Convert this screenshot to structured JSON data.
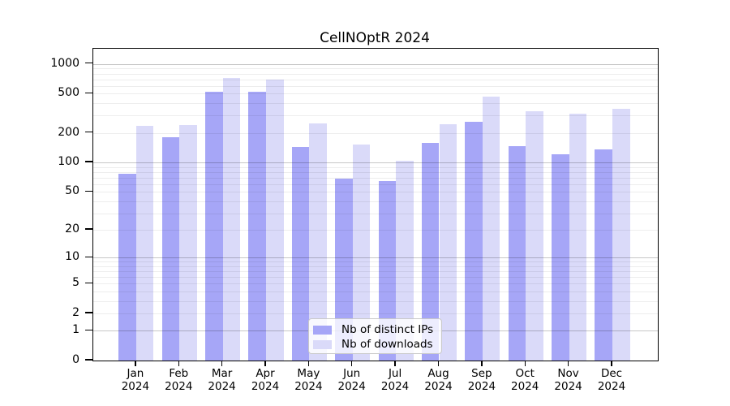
{
  "chart_data": {
    "type": "bar",
    "title": "CellNOptR 2024",
    "categories": [
      "Jan",
      "Feb",
      "Mar",
      "Apr",
      "May",
      "Jun",
      "Jul",
      "Aug",
      "Sep",
      "Oct",
      "Nov",
      "Dec"
    ],
    "year_label": "2024",
    "series": [
      {
        "name": "Nb of distinct IPs",
        "color": "#a6a6f7",
        "values": [
          76,
          182,
          520,
          520,
          145,
          69,
          64,
          157,
          262,
          148,
          122,
          137
        ]
      },
      {
        "name": "Nb of downloads",
        "color": "#dadaf9",
        "values": [
          238,
          243,
          720,
          695,
          252,
          153,
          104,
          245,
          468,
          330,
          315,
          350
        ]
      }
    ],
    "y_axis": {
      "scale": "log10(value+1)",
      "tick_values": [
        0,
        1,
        2,
        5,
        10,
        20,
        50,
        100,
        200,
        500,
        1000
      ],
      "major_grid_values": [
        1,
        10,
        100,
        1000
      ],
      "ylim": [
        0,
        1200
      ]
    },
    "x_axis": {
      "tick_style": "month over year, two lines"
    },
    "legend": {
      "position": "bottom-center-inside"
    },
    "grid": "log minor+major horizontal lines"
  }
}
